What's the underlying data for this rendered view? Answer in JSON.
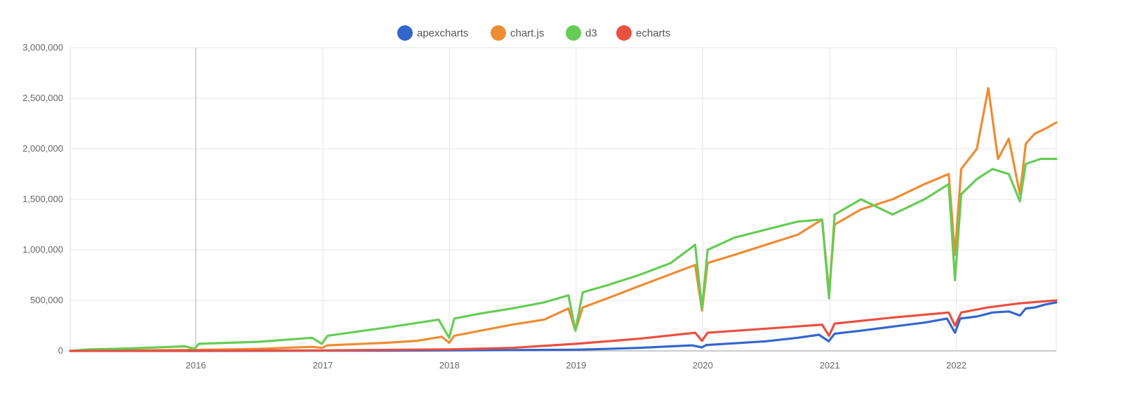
{
  "chart_data": {
    "type": "line",
    "title": "",
    "xlabel": "",
    "ylabel": "",
    "x_axis": {
      "type": "date",
      "range": [
        "2015-01-04",
        "2022-10-16"
      ],
      "ticks": [
        "2016",
        "2017",
        "2018",
        "2019",
        "2020",
        "2021",
        "2022"
      ]
    },
    "y_axis": {
      "range": [
        0,
        3000000
      ],
      "ticks": [
        "0",
        "500,000",
        "1,000,000",
        "1,500,000",
        "2,000,000",
        "2,500,000",
        "3,000,000"
      ]
    },
    "grid": true,
    "legend_position": "top-center",
    "series": [
      {
        "name": "apexcharts",
        "color": "#3366cc",
        "points": [
          [
            "2015-01-04",
            0
          ],
          [
            "2015-07-01",
            0
          ],
          [
            "2016-01-01",
            0
          ],
          [
            "2016-07-01",
            1000
          ],
          [
            "2017-01-01",
            2000
          ],
          [
            "2017-07-01",
            3000
          ],
          [
            "2018-01-01",
            5000
          ],
          [
            "2018-07-01",
            8000
          ],
          [
            "2019-01-01",
            12000
          ],
          [
            "2019-04-01",
            20000
          ],
          [
            "2019-07-01",
            30000
          ],
          [
            "2019-10-01",
            45000
          ],
          [
            "2019-12-01",
            55000
          ],
          [
            "2019-12-29",
            35000
          ],
          [
            "2020-01-12",
            58000
          ],
          [
            "2020-04-01",
            75000
          ],
          [
            "2020-07-01",
            95000
          ],
          [
            "2020-10-01",
            130000
          ],
          [
            "2020-12-01",
            160000
          ],
          [
            "2020-12-29",
            95000
          ],
          [
            "2021-01-15",
            170000
          ],
          [
            "2021-04-01",
            200000
          ],
          [
            "2021-07-01",
            240000
          ],
          [
            "2021-10-01",
            280000
          ],
          [
            "2021-12-05",
            320000
          ],
          [
            "2021-12-28",
            180000
          ],
          [
            "2022-01-12",
            320000
          ],
          [
            "2022-03-01",
            340000
          ],
          [
            "2022-04-15",
            380000
          ],
          [
            "2022-06-01",
            390000
          ],
          [
            "2022-07-03",
            350000
          ],
          [
            "2022-07-20",
            420000
          ],
          [
            "2022-08-15",
            430000
          ],
          [
            "2022-09-15",
            460000
          ],
          [
            "2022-10-16",
            480000
          ]
        ]
      },
      {
        "name": "chart.js",
        "color": "#ee8c33",
        "points": [
          [
            "2015-01-04",
            0
          ],
          [
            "2015-07-01",
            5000
          ],
          [
            "2016-01-01",
            10000
          ],
          [
            "2016-07-01",
            20000
          ],
          [
            "2016-12-01",
            40000
          ],
          [
            "2016-12-29",
            30000
          ],
          [
            "2017-01-15",
            55000
          ],
          [
            "2017-07-01",
            80000
          ],
          [
            "2017-10-01",
            100000
          ],
          [
            "2017-12-10",
            140000
          ],
          [
            "2017-12-31",
            80000
          ],
          [
            "2018-01-15",
            150000
          ],
          [
            "2018-04-01",
            200000
          ],
          [
            "2018-07-01",
            260000
          ],
          [
            "2018-10-01",
            310000
          ],
          [
            "2018-12-10",
            420000
          ],
          [
            "2018-12-30",
            200000
          ],
          [
            "2019-01-20",
            430000
          ],
          [
            "2019-04-01",
            520000
          ],
          [
            "2019-07-01",
            640000
          ],
          [
            "2019-10-01",
            760000
          ],
          [
            "2019-12-10",
            850000
          ],
          [
            "2019-12-30",
            400000
          ],
          [
            "2020-01-15",
            870000
          ],
          [
            "2020-04-01",
            950000
          ],
          [
            "2020-07-01",
            1050000
          ],
          [
            "2020-10-01",
            1150000
          ],
          [
            "2020-12-10",
            1300000
          ],
          [
            "2020-12-30",
            580000
          ],
          [
            "2021-01-15",
            1250000
          ],
          [
            "2021-04-01",
            1400000
          ],
          [
            "2021-07-01",
            1500000
          ],
          [
            "2021-10-01",
            1650000
          ],
          [
            "2021-12-10",
            1750000
          ],
          [
            "2021-12-28",
            950000
          ],
          [
            "2022-01-15",
            1800000
          ],
          [
            "2022-03-01",
            2000000
          ],
          [
            "2022-04-03",
            2600000
          ],
          [
            "2022-05-01",
            1900000
          ],
          [
            "2022-06-01",
            2100000
          ],
          [
            "2022-07-03",
            1550000
          ],
          [
            "2022-07-20",
            2050000
          ],
          [
            "2022-08-15",
            2150000
          ],
          [
            "2022-09-15",
            2200000
          ],
          [
            "2022-10-16",
            2260000
          ]
        ]
      },
      {
        "name": "d3",
        "color": "#66cc55",
        "points": [
          [
            "2015-01-04",
            0
          ],
          [
            "2015-03-01",
            15000
          ],
          [
            "2015-07-01",
            25000
          ],
          [
            "2015-12-01",
            45000
          ],
          [
            "2015-12-28",
            20000
          ],
          [
            "2016-01-10",
            70000
          ],
          [
            "2016-07-01",
            90000
          ],
          [
            "2016-12-01",
            130000
          ],
          [
            "2016-12-29",
            70000
          ],
          [
            "2017-01-15",
            150000
          ],
          [
            "2017-07-01",
            230000
          ],
          [
            "2017-12-01",
            310000
          ],
          [
            "2017-12-31",
            130000
          ],
          [
            "2018-01-15",
            320000
          ],
          [
            "2018-04-01",
            370000
          ],
          [
            "2018-07-01",
            420000
          ],
          [
            "2018-10-01",
            480000
          ],
          [
            "2018-12-10",
            550000
          ],
          [
            "2018-12-30",
            200000
          ],
          [
            "2019-01-20",
            580000
          ],
          [
            "2019-04-01",
            650000
          ],
          [
            "2019-07-01",
            750000
          ],
          [
            "2019-10-01",
            870000
          ],
          [
            "2019-12-10",
            1050000
          ],
          [
            "2019-12-30",
            420000
          ],
          [
            "2020-01-15",
            1000000
          ],
          [
            "2020-04-01",
            1120000
          ],
          [
            "2020-07-01",
            1200000
          ],
          [
            "2020-10-01",
            1280000
          ],
          [
            "2020-12-10",
            1300000
          ],
          [
            "2020-12-30",
            520000
          ],
          [
            "2021-01-15",
            1350000
          ],
          [
            "2021-04-01",
            1500000
          ],
          [
            "2021-07-01",
            1350000
          ],
          [
            "2021-10-01",
            1500000
          ],
          [
            "2021-12-10",
            1650000
          ],
          [
            "2021-12-28",
            700000
          ],
          [
            "2022-01-15",
            1550000
          ],
          [
            "2022-03-01",
            1700000
          ],
          [
            "2022-04-15",
            1800000
          ],
          [
            "2022-06-01",
            1750000
          ],
          [
            "2022-07-03",
            1480000
          ],
          [
            "2022-07-20",
            1850000
          ],
          [
            "2022-09-01",
            1900000
          ],
          [
            "2022-10-16",
            1900000
          ]
        ]
      },
      {
        "name": "echarts",
        "color": "#e85040",
        "points": [
          [
            "2015-01-04",
            0
          ],
          [
            "2016-01-01",
            2000
          ],
          [
            "2017-01-01",
            5000
          ],
          [
            "2018-01-01",
            15000
          ],
          [
            "2018-07-01",
            30000
          ],
          [
            "2019-01-01",
            70000
          ],
          [
            "2019-07-01",
            120000
          ],
          [
            "2019-12-10",
            180000
          ],
          [
            "2019-12-30",
            100000
          ],
          [
            "2020-01-15",
            180000
          ],
          [
            "2020-07-01",
            220000
          ],
          [
            "2020-12-10",
            260000
          ],
          [
            "2020-12-30",
            150000
          ],
          [
            "2021-01-15",
            270000
          ],
          [
            "2021-07-01",
            330000
          ],
          [
            "2021-12-10",
            380000
          ],
          [
            "2021-12-28",
            250000
          ],
          [
            "2022-01-15",
            380000
          ],
          [
            "2022-04-01",
            430000
          ],
          [
            "2022-07-01",
            470000
          ],
          [
            "2022-10-16",
            500000
          ]
        ]
      }
    ]
  }
}
